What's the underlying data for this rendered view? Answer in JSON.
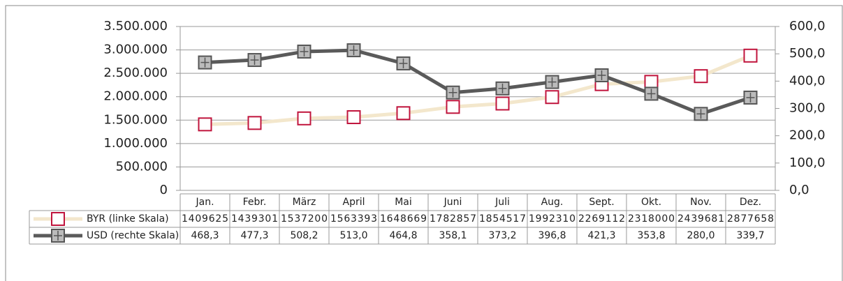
{
  "chart_data": {
    "type": "line",
    "categories": [
      "Jan.",
      "Febr.",
      "März",
      "April",
      "Mai",
      "Juni",
      "Juli",
      "Aug.",
      "Sept.",
      "Okt.",
      "Nov.",
      "Dez."
    ],
    "series": [
      {
        "name": "BYR (linke Skala)",
        "color": "#f3e7cc",
        "values": [
          1409625,
          1439301,
          1537200,
          1563393,
          1648669,
          1782857,
          1854517,
          1992310,
          2269112,
          2318000,
          2439681,
          2877658
        ]
      },
      {
        "name": "USD (rechte Skala)",
        "color": "#5a5a5a",
        "axis": "y2",
        "values": [
          468.3,
          477.3,
          508.2,
          513.0,
          464.8,
          358.1,
          373.2,
          396.8,
          421.3,
          353.8,
          280.0,
          339.7
        ],
        "value_labels": [
          "468,3",
          "477,3",
          "508,2",
          "513,0",
          "464,8",
          "358,1",
          "373,2",
          "396,8",
          "421,3",
          "353,8",
          "280,0",
          "339,7"
        ]
      }
    ],
    "ylim": [
      0,
      3500000
    ],
    "yticks": [
      0,
      {
        "value": 500000,
        "label": "500.000"
      },
      {
        "value": 1000000,
        "label": "1.000.000"
      },
      {
        "value": 1500000,
        "label": "1.500.000"
      },
      {
        "value": 2000000,
        "label": "2.000.000"
      },
      {
        "value": 2500000,
        "label": "2.500.000"
      },
      {
        "value": 3000000,
        "label": "3.000.000"
      },
      {
        "value": 3500000,
        "label": "3.500.000"
      }
    ],
    "y2lim": [
      0,
      600
    ],
    "y2ticks": [
      {
        "value": 0,
        "label": "0,0"
      },
      {
        "value": 100,
        "label": "100,0"
      },
      {
        "value": 200,
        "label": "200,0"
      },
      {
        "value": 300,
        "label": "300,0"
      },
      {
        "value": 400,
        "label": "400,0"
      },
      {
        "value": 500,
        "label": "500,0"
      },
      {
        "value": 600,
        "label": "600,0"
      }
    ],
    "grid": true
  }
}
